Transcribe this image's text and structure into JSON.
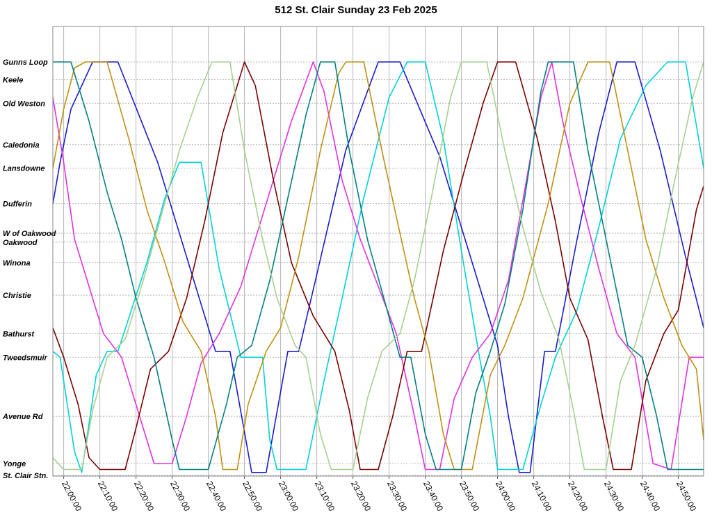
{
  "chart_data": {
    "type": "line",
    "title": "512 St. Clair Sunday 23 Feb 2025",
    "x_ticks": [
      "22:00:00",
      "22:10:00",
      "22:20:00",
      "22:30:00",
      "22:40:00",
      "22:50:00",
      "23:00:00",
      "23:10:00",
      "23:20:00",
      "23:30:00",
      "23:40:00",
      "23:50:00",
      "24:00:00",
      "24:10:00",
      "24:20:00",
      "24:30:00",
      "24:40:00",
      "24:50:00"
    ],
    "x_range": [
      "21:57:00",
      "24:57:00"
    ],
    "grid": true,
    "stops": [
      {
        "name": "Gunns Loop",
        "km": 7.0
      },
      {
        "name": "Keele",
        "km": 6.7
      },
      {
        "name": "Old Weston",
        "km": 6.3
      },
      {
        "name": "Caledonia",
        "km": 5.6
      },
      {
        "name": "Lansdowne",
        "km": 5.2
      },
      {
        "name": "Dufferin",
        "km": 4.6
      },
      {
        "name": "W of Oakwood",
        "km": 4.1
      },
      {
        "name": "Oakwood",
        "km": 3.95
      },
      {
        "name": "Winona",
        "km": 3.6
      },
      {
        "name": "Christie",
        "km": 3.05
      },
      {
        "name": "Bathurst",
        "km": 2.4
      },
      {
        "name": "Tweedsmuir",
        "km": 2.0
      },
      {
        "name": "Avenue Rd",
        "km": 1.0
      },
      {
        "name": "Yonge",
        "km": 0.2
      },
      {
        "name": "St. Clair Stn.",
        "km": 0.0
      }
    ],
    "series": [
      {
        "color": "#1a1ad0",
        "points": [
          [
            "21:57:00",
            4.6
          ],
          [
            "21:59:00",
            5.3
          ],
          [
            "22:02:00",
            6.2
          ],
          [
            "22:08:00",
            7.0
          ],
          [
            "22:15:00",
            7.0
          ],
          [
            "22:26:00",
            5.3
          ],
          [
            "22:36:00",
            3.3
          ],
          [
            "22:42:00",
            2.1
          ],
          [
            "22:46:00",
            2.1
          ],
          [
            "22:52:00",
            0.05
          ],
          [
            "22:56:00",
            0.05
          ],
          [
            "23:02:00",
            2.1
          ],
          [
            "23:05:00",
            2.1
          ],
          [
            "23:10:00",
            3.4
          ],
          [
            "23:18:00",
            5.5
          ],
          [
            "23:27:00",
            7.0
          ],
          [
            "23:33:00",
            7.0
          ],
          [
            "23:44:00",
            5.4
          ],
          [
            "23:54:00",
            3.4
          ],
          [
            "24:00:00",
            2.2
          ],
          [
            "24:03:00",
            1.0
          ],
          [
            "24:06:00",
            0.05
          ],
          [
            "24:09:00",
            0.05
          ],
          [
            "24:13:00",
            2.1
          ],
          [
            "24:16:00",
            2.1
          ],
          [
            "24:22:00",
            4.0
          ],
          [
            "24:28:00",
            5.8
          ],
          [
            "24:33:00",
            7.0
          ],
          [
            "24:38:00",
            7.0
          ],
          [
            "24:45:00",
            5.5
          ],
          [
            "24:52:00",
            3.7
          ],
          [
            "24:57:00",
            2.5
          ]
        ]
      },
      {
        "color": "#00d2d8",
        "points": [
          [
            "21:57:00",
            2.1
          ],
          [
            "21:59:00",
            2.0
          ],
          [
            "22:03:00",
            0.4
          ],
          [
            "22:05:00",
            0.05
          ],
          [
            "22:09:00",
            1.7
          ],
          [
            "22:12:00",
            2.1
          ],
          [
            "22:15:00",
            2.1
          ],
          [
            "22:23:00",
            3.6
          ],
          [
            "22:28:00",
            4.7
          ],
          [
            "22:32:00",
            5.3
          ],
          [
            "22:38:00",
            5.3
          ],
          [
            "22:43:00",
            3.5
          ],
          [
            "22:49:00",
            2.0
          ],
          [
            "22:55:00",
            2.0
          ],
          [
            "22:57:00",
            0.6
          ],
          [
            "22:59:00",
            0.1
          ],
          [
            "23:07:00",
            0.1
          ],
          [
            "23:12:00",
            1.6
          ],
          [
            "23:17:00",
            3.0
          ],
          [
            "23:23:00",
            4.7
          ],
          [
            "23:30:00",
            6.4
          ],
          [
            "23:35:00",
            7.0
          ],
          [
            "23:40:00",
            7.0
          ],
          [
            "23:45:00",
            5.7
          ],
          [
            "23:50:00",
            3.8
          ],
          [
            "23:55:00",
            2.0
          ],
          [
            "23:58:00",
            1.0
          ],
          [
            "24:00:00",
            0.1
          ],
          [
            "24:07:00",
            0.1
          ],
          [
            "24:12:00",
            1.2
          ],
          [
            "24:16:00",
            2.0
          ],
          [
            "24:22:00",
            2.8
          ],
          [
            "24:28:00",
            4.2
          ],
          [
            "24:34:00",
            5.7
          ],
          [
            "24:41:00",
            6.6
          ],
          [
            "24:47:00",
            7.0
          ],
          [
            "24:52:00",
            7.0
          ],
          [
            "24:57:00",
            5.2
          ]
        ]
      },
      {
        "color": "#e030e0",
        "points": [
          [
            "21:57:00",
            6.4
          ],
          [
            "22:00:00",
            5.3
          ],
          [
            "22:03:00",
            4.0
          ],
          [
            "22:07:00",
            3.2
          ],
          [
            "22:11:00",
            2.4
          ],
          [
            "22:16:00",
            2.0
          ],
          [
            "22:21:00",
            1.0
          ],
          [
            "22:25:00",
            0.2
          ],
          [
            "22:30:00",
            0.2
          ],
          [
            "22:34:00",
            1.0
          ],
          [
            "22:38:00",
            1.9
          ],
          [
            "22:43:00",
            2.4
          ],
          [
            "22:49:00",
            3.2
          ],
          [
            "22:56:00",
            4.6
          ],
          [
            "23:03:00",
            6.0
          ],
          [
            "23:09:00",
            7.0
          ],
          [
            "23:12:00",
            6.5
          ],
          [
            "23:17:00",
            5.0
          ],
          [
            "23:22:00",
            4.0
          ],
          [
            "23:27:00",
            3.2
          ],
          [
            "23:32:00",
            2.4
          ],
          [
            "23:37:00",
            1.0
          ],
          [
            "23:40:00",
            0.1
          ],
          [
            "23:44:00",
            0.1
          ],
          [
            "23:48:00",
            1.3
          ],
          [
            "23:53:00",
            2.0
          ],
          [
            "23:58:00",
            2.4
          ],
          [
            "24:03:00",
            3.3
          ],
          [
            "24:08:00",
            5.0
          ],
          [
            "24:12:00",
            6.4
          ],
          [
            "24:15:00",
            7.0
          ],
          [
            "24:18:00",
            6.0
          ],
          [
            "24:23:00",
            4.7
          ],
          [
            "24:28:00",
            3.5
          ],
          [
            "24:33:00",
            2.4
          ],
          [
            "24:38:00",
            2.0
          ],
          [
            "24:43:00",
            0.2
          ],
          [
            "24:48:00",
            0.1
          ],
          [
            "24:53:00",
            2.0
          ],
          [
            "24:57:00",
            2.0
          ]
        ]
      },
      {
        "color": "#7a0000",
        "points": [
          [
            "21:57:00",
            2.5
          ],
          [
            "22:00:00",
            2.0
          ],
          [
            "22:04:00",
            1.2
          ],
          [
            "22:07:00",
            0.3
          ],
          [
            "22:10:00",
            0.1
          ],
          [
            "22:17:00",
            0.1
          ],
          [
            "22:20:00",
            0.8
          ],
          [
            "22:24:00",
            1.8
          ],
          [
            "22:29:00",
            2.1
          ],
          [
            "22:34:00",
            3.0
          ],
          [
            "22:39:00",
            4.3
          ],
          [
            "22:44:00",
            5.8
          ],
          [
            "22:50:00",
            7.0
          ],
          [
            "22:53:00",
            6.6
          ],
          [
            "22:58:00",
            5.0
          ],
          [
            "23:03:00",
            3.6
          ],
          [
            "23:09:00",
            2.7
          ],
          [
            "23:15:00",
            2.1
          ],
          [
            "23:19:00",
            1.1
          ],
          [
            "23:22:00",
            0.1
          ],
          [
            "23:27:00",
            0.1
          ],
          [
            "23:31:00",
            1.0
          ],
          [
            "23:35:00",
            2.1
          ],
          [
            "23:39:00",
            2.1
          ],
          [
            "23:45:00",
            3.8
          ],
          [
            "23:51:00",
            5.2
          ],
          [
            "23:56:00",
            6.3
          ],
          [
            "24:00:00",
            7.0
          ],
          [
            "24:05:00",
            7.0
          ],
          [
            "24:11:00",
            5.7
          ],
          [
            "24:16:00",
            4.3
          ],
          [
            "24:20:00",
            3.0
          ],
          [
            "24:25:00",
            2.3
          ],
          [
            "24:29:00",
            1.0
          ],
          [
            "24:32:00",
            0.1
          ],
          [
            "24:37:00",
            0.1
          ],
          [
            "24:41:00",
            1.6
          ],
          [
            "24:46:00",
            2.4
          ],
          [
            "24:50:00",
            2.8
          ],
          [
            "24:55:00",
            4.5
          ],
          [
            "24:57:00",
            4.9
          ]
        ]
      },
      {
        "color": "#c09010",
        "points": [
          [
            "21:57:00",
            5.2
          ],
          [
            "22:00:00",
            6.2
          ],
          [
            "22:03:00",
            6.9
          ],
          [
            "22:06:00",
            7.0
          ],
          [
            "22:12:00",
            7.0
          ],
          [
            "22:18:00",
            5.7
          ],
          [
            "22:23:00",
            4.5
          ],
          [
            "22:28:00",
            3.6
          ],
          [
            "22:33:00",
            2.6
          ],
          [
            "22:38:00",
            2.1
          ],
          [
            "22:42:00",
            1.0
          ],
          [
            "22:44:00",
            0.1
          ],
          [
            "22:48:00",
            0.1
          ],
          [
            "22:51:00",
            1.2
          ],
          [
            "22:56:00",
            2.1
          ],
          [
            "23:00:00",
            2.5
          ],
          [
            "23:05:00",
            3.7
          ],
          [
            "23:11:00",
            5.5
          ],
          [
            "23:16:00",
            6.8
          ],
          [
            "23:18:00",
            7.0
          ],
          [
            "23:23:00",
            7.0
          ],
          [
            "23:28:00",
            5.5
          ],
          [
            "23:33:00",
            4.1
          ],
          [
            "23:37:00",
            3.0
          ],
          [
            "23:41:00",
            2.1
          ],
          [
            "23:45:00",
            0.7
          ],
          [
            "23:48:00",
            0.1
          ],
          [
            "23:53:00",
            0.1
          ],
          [
            "23:58:00",
            1.7
          ],
          [
            "24:02:00",
            2.2
          ],
          [
            "24:07:00",
            3.0
          ],
          [
            "24:14:00",
            4.6
          ],
          [
            "24:20:00",
            6.3
          ],
          [
            "24:25:00",
            7.0
          ],
          [
            "24:31:00",
            7.0
          ],
          [
            "24:36:00",
            5.5
          ],
          [
            "24:41:00",
            4.0
          ],
          [
            "24:46:00",
            3.0
          ],
          [
            "24:51:00",
            2.2
          ],
          [
            "24:55:00",
            1.8
          ],
          [
            "24:57:00",
            0.6
          ]
        ]
      },
      {
        "color": "#008080",
        "points": [
          [
            "21:57:00",
            7.0
          ],
          [
            "22:02:00",
            7.0
          ],
          [
            "22:07:00",
            6.0
          ],
          [
            "22:12:00",
            4.8
          ],
          [
            "22:16:00",
            4.0
          ],
          [
            "22:20:00",
            3.0
          ],
          [
            "22:25:00",
            2.0
          ],
          [
            "22:30:00",
            0.6
          ],
          [
            "22:32:00",
            0.1
          ],
          [
            "22:40:00",
            0.1
          ],
          [
            "22:45:00",
            1.2
          ],
          [
            "22:48:00",
            2.0
          ],
          [
            "22:52:00",
            2.2
          ],
          [
            "22:57:00",
            3.3
          ],
          [
            "23:02:00",
            4.7
          ],
          [
            "23:07:00",
            6.1
          ],
          [
            "23:11:00",
            7.0
          ],
          [
            "23:15:00",
            7.0
          ],
          [
            "23:19:00",
            5.5
          ],
          [
            "23:24:00",
            4.0
          ],
          [
            "23:29:00",
            2.9
          ],
          [
            "23:33:00",
            2.0
          ],
          [
            "23:36:00",
            2.0
          ],
          [
            "23:40:00",
            0.7
          ],
          [
            "23:43:00",
            0.1
          ],
          [
            "23:50:00",
            0.1
          ],
          [
            "23:54:00",
            1.4
          ],
          [
            "23:58:00",
            2.1
          ],
          [
            "24:02:00",
            2.9
          ],
          [
            "24:07:00",
            4.5
          ],
          [
            "24:12:00",
            6.5
          ],
          [
            "24:14:00",
            7.0
          ],
          [
            "24:21:00",
            7.0
          ],
          [
            "24:25:00",
            5.5
          ],
          [
            "24:30:00",
            4.0
          ],
          [
            "24:36:00",
            2.2
          ],
          [
            "24:40:00",
            2.0
          ],
          [
            "24:44:00",
            1.0
          ],
          [
            "24:47:00",
            0.1
          ],
          [
            "24:57:00",
            0.1
          ]
        ]
      },
      {
        "color": "#a6d08f",
        "points": [
          [
            "21:57:00",
            0.3
          ],
          [
            "22:00:00",
            0.1
          ],
          [
            "22:05:00",
            0.1
          ],
          [
            "22:08:00",
            1.1
          ],
          [
            "22:12:00",
            2.0
          ],
          [
            "22:17:00",
            2.3
          ],
          [
            "22:22:00",
            3.3
          ],
          [
            "22:27:00",
            4.4
          ],
          [
            "22:32:00",
            5.5
          ],
          [
            "22:37:00",
            6.4
          ],
          [
            "22:41:00",
            7.0
          ],
          [
            "22:46:00",
            7.0
          ],
          [
            "22:50:00",
            5.5
          ],
          [
            "22:55:00",
            4.0
          ],
          [
            "22:59:00",
            3.0
          ],
          [
            "23:04:00",
            2.2
          ],
          [
            "23:07:00",
            2.0
          ],
          [
            "23:11:00",
            0.7
          ],
          [
            "23:14:00",
            0.1
          ],
          [
            "23:20:00",
            0.1
          ],
          [
            "23:24:00",
            1.3
          ],
          [
            "23:28:00",
            2.1
          ],
          [
            "23:33:00",
            2.4
          ],
          [
            "23:37:00",
            3.3
          ],
          [
            "23:42:00",
            4.8
          ],
          [
            "23:47:00",
            6.4
          ],
          [
            "23:50:00",
            7.0
          ],
          [
            "23:57:00",
            7.0
          ],
          [
            "24:02:00",
            5.5
          ],
          [
            "24:07:00",
            4.2
          ],
          [
            "24:12:00",
            3.1
          ],
          [
            "24:17:00",
            2.3
          ],
          [
            "24:21:00",
            1.1
          ],
          [
            "24:24:00",
            0.1
          ],
          [
            "24:30:00",
            0.1
          ],
          [
            "24:34:00",
            1.6
          ],
          [
            "24:38:00",
            2.2
          ],
          [
            "24:44:00",
            3.5
          ],
          [
            "24:49:00",
            5.0
          ],
          [
            "24:54:00",
            6.4
          ],
          [
            "24:57:00",
            7.0
          ]
        ]
      }
    ]
  }
}
